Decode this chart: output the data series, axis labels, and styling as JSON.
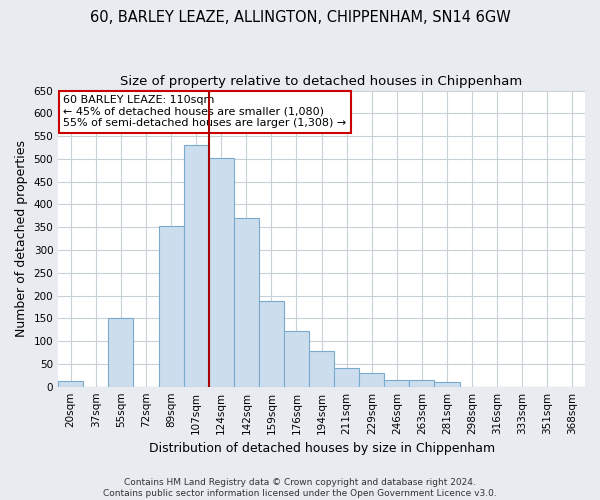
{
  "title": "60, BARLEY LEAZE, ALLINGTON, CHIPPENHAM, SN14 6GW",
  "subtitle": "Size of property relative to detached houses in Chippenham",
  "xlabel": "Distribution of detached houses by size in Chippenham",
  "ylabel": "Number of detached properties",
  "categories": [
    "20sqm",
    "37sqm",
    "55sqm",
    "72sqm",
    "89sqm",
    "107sqm",
    "124sqm",
    "142sqm",
    "159sqm",
    "176sqm",
    "194sqm",
    "211sqm",
    "229sqm",
    "246sqm",
    "263sqm",
    "281sqm",
    "298sqm",
    "316sqm",
    "333sqm",
    "351sqm",
    "368sqm"
  ],
  "values": [
    13,
    0,
    150,
    0,
    353,
    530,
    503,
    370,
    188,
    122,
    78,
    40,
    30,
    14,
    14,
    10,
    0,
    0,
    0,
    0,
    0
  ],
  "bar_color": "#ccdded",
  "bar_edge_color": "#7aabcc",
  "vline_color": "#aa0000",
  "vline_x": 5.5,
  "ylim": [
    0,
    650
  ],
  "yticks": [
    0,
    50,
    100,
    150,
    200,
    250,
    300,
    350,
    400,
    450,
    500,
    550,
    600,
    650
  ],
  "annotation_title": "60 BARLEY LEAZE: 110sqm",
  "annotation_line1": "← 45% of detached houses are smaller (1,080)",
  "annotation_line2": "55% of semi-detached houses are larger (1,308) →",
  "annotation_box_color": "#ffffff",
  "annotation_box_edge": "#cc0000",
  "footnote1": "Contains HM Land Registry data © Crown copyright and database right 2024.",
  "footnote2": "Contains public sector information licensed under the Open Government Licence v3.0.",
  "bg_color": "#e8ecf0",
  "plot_bg_color": "#ffffff",
  "grid_color": "#c8d0d8",
  "title_fontsize": 10.5,
  "subtitle_fontsize": 9.5,
  "axis_label_fontsize": 9,
  "tick_fontsize": 7.5,
  "annot_fontsize": 8,
  "footnote_fontsize": 6.5
}
